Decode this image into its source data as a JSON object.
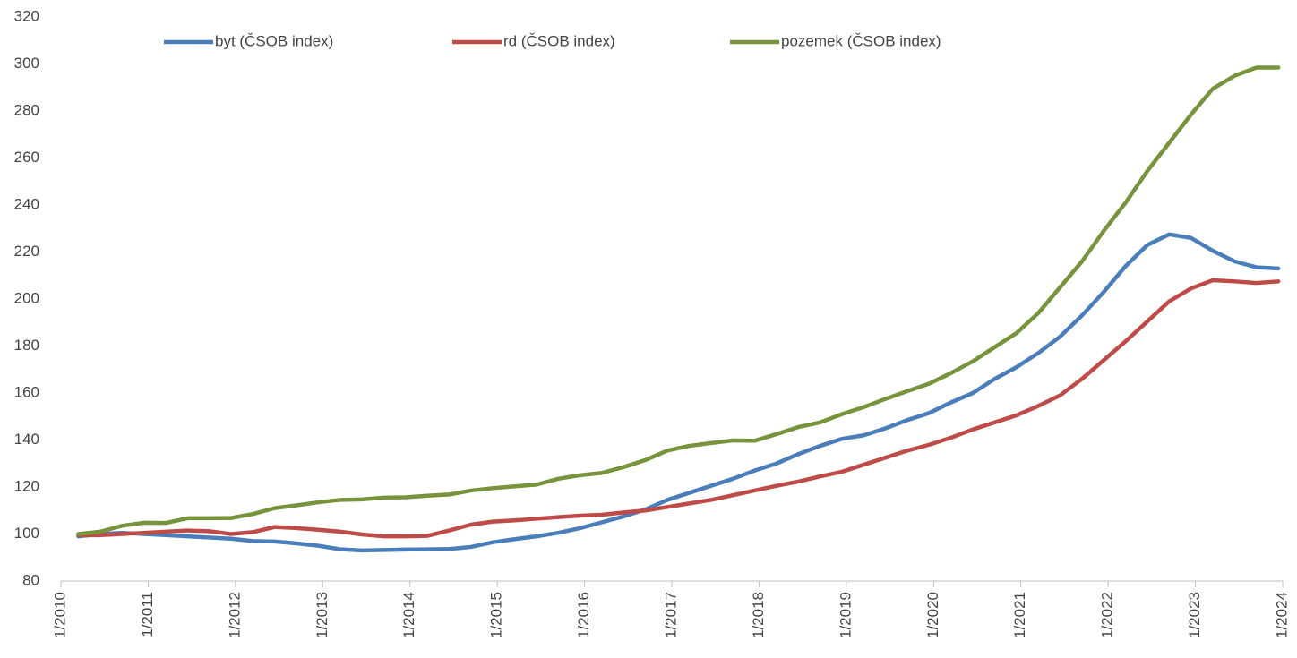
{
  "chart_data": {
    "type": "line",
    "x": [
      2010.2,
      2010.45,
      2010.7,
      2010.95,
      2011.2,
      2011.45,
      2011.7,
      2011.95,
      2012.2,
      2012.45,
      2012.7,
      2012.95,
      2013.2,
      2013.45,
      2013.7,
      2013.95,
      2014.2,
      2014.45,
      2014.7,
      2014.95,
      2015.2,
      2015.45,
      2015.7,
      2015.95,
      2016.2,
      2016.45,
      2016.7,
      2016.95,
      2017.2,
      2017.45,
      2017.7,
      2017.95,
      2018.2,
      2018.45,
      2018.7,
      2018.95,
      2019.2,
      2019.45,
      2019.7,
      2019.95,
      2020.2,
      2020.45,
      2020.7,
      2020.95,
      2021.2,
      2021.45,
      2021.7,
      2021.95,
      2022.2,
      2022.45,
      2022.7,
      2022.95,
      2023.2,
      2023.45,
      2023.7,
      2023.95
    ],
    "series": [
      {
        "name": "byt (ČSOB index)",
        "color": "#4a7ebb",
        "values": [
          99,
          100,
          100.5,
          100,
          99.5,
          99,
          98.5,
          98,
          97,
          96.8,
          96,
          95,
          93.5,
          93,
          93.2,
          93.4,
          93.5,
          93.6,
          94.5,
          96.5,
          97.8,
          99,
          100.5,
          102.5,
          105,
          107.5,
          110.5,
          114.5,
          117.5,
          120.5,
          123.5,
          127,
          130,
          134,
          137.5,
          140.5,
          142,
          145,
          148.5,
          151.5,
          156,
          160,
          166,
          171,
          177,
          184,
          193,
          203,
          214,
          223,
          227.5,
          226,
          220.5,
          216,
          213.5,
          213
        ]
      },
      {
        "name": "rd (ČSOB index)",
        "color": "#be4b48",
        "values": [
          99.5,
          99.5,
          100,
          100.5,
          101,
          101.5,
          101.2,
          100,
          100.8,
          103,
          102.5,
          101.8,
          101,
          99.8,
          99,
          99,
          99.2,
          101.5,
          104,
          105.3,
          105.8,
          106.5,
          107.2,
          107.8,
          108.2,
          109.2,
          110,
          111.5,
          113,
          114.5,
          116.5,
          118.5,
          120.5,
          122.3,
          124.5,
          126.5,
          129.5,
          132.5,
          135.5,
          138,
          141,
          144.5,
          147.5,
          150.5,
          154.5,
          159,
          166,
          174,
          182,
          190.5,
          199,
          204.5,
          208,
          207.5,
          206.8,
          207.5
        ]
      },
      {
        "name": "pozemek (ČSOB index)",
        "color": "#77933c",
        "values": [
          100,
          101,
          103.5,
          104.8,
          104.7,
          106.7,
          106.7,
          106.8,
          108.5,
          111,
          112.2,
          113.5,
          114.5,
          114.7,
          115.5,
          115.6,
          116.3,
          116.8,
          118.5,
          119.5,
          120.3,
          121,
          123.5,
          125,
          126,
          128.5,
          131.5,
          135.5,
          137.5,
          138.7,
          139.8,
          139.7,
          142.5,
          145.5,
          147.5,
          151,
          154,
          157.5,
          160.8,
          164,
          168.5,
          173.5,
          179.5,
          185.5,
          194,
          205,
          216,
          229,
          241,
          254.5,
          266.5,
          278.5,
          289.5,
          295,
          298.5,
          298.5
        ]
      }
    ],
    "xlim": [
      2010,
      2024
    ],
    "xticks": [
      {
        "value": 2010,
        "label": "1/2010"
      },
      {
        "value": 2011,
        "label": "1/2011"
      },
      {
        "value": 2012,
        "label": "1/2012"
      },
      {
        "value": 2013,
        "label": "1/2013"
      },
      {
        "value": 2014,
        "label": "1/2014"
      },
      {
        "value": 2015,
        "label": "1/2015"
      },
      {
        "value": 2016,
        "label": "1/2016"
      },
      {
        "value": 2017,
        "label": "1/2017"
      },
      {
        "value": 2018,
        "label": "1/2018"
      },
      {
        "value": 2019,
        "label": "1/2019"
      },
      {
        "value": 2020,
        "label": "1/2020"
      },
      {
        "value": 2021,
        "label": "1/2021"
      },
      {
        "value": 2022,
        "label": "1/2022"
      },
      {
        "value": 2023,
        "label": "1/2023"
      },
      {
        "value": 2024,
        "label": "1/2024"
      }
    ],
    "ylim": [
      80,
      320
    ],
    "yticks": [
      80,
      100,
      120,
      140,
      160,
      180,
      200,
      220,
      240,
      260,
      280,
      300,
      320
    ],
    "grid": false,
    "legend": "top"
  }
}
